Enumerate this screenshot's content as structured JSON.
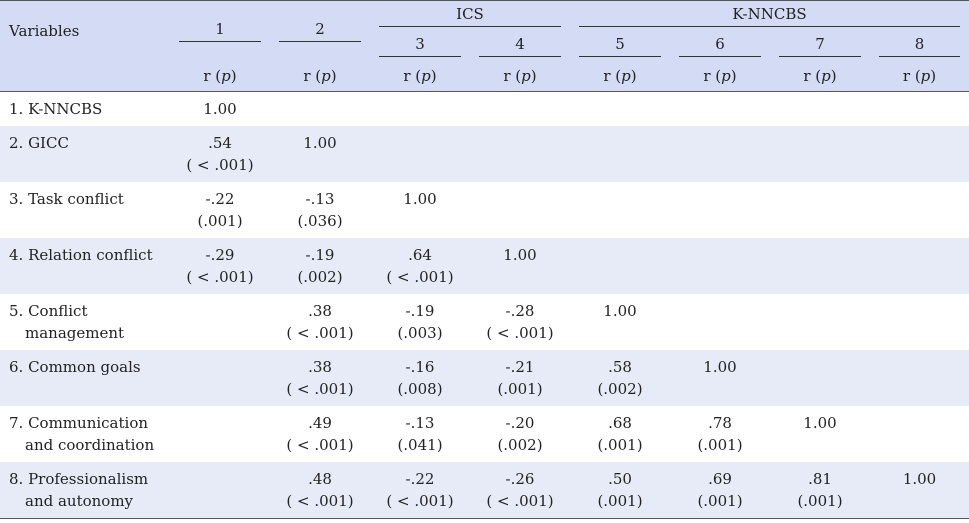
{
  "header": {
    "variables_label": "Variables",
    "groups": {
      "ics": "ICS",
      "knncbs": "K-NNCBS"
    },
    "col_numbers": [
      "1",
      "2",
      "3",
      "4",
      "5",
      "6",
      "7",
      "8"
    ],
    "r_prefix": "r (",
    "p_symbol": "p",
    "r_suffix": ")"
  },
  "rows": [
    {
      "label": "1. K-NNCBS",
      "label2": "",
      "cells": [
        [
          "1.00",
          ""
        ],
        [
          "",
          ""
        ],
        [
          "",
          ""
        ],
        [
          "",
          ""
        ],
        [
          "",
          ""
        ],
        [
          "",
          ""
        ],
        [
          "",
          ""
        ],
        [
          "",
          ""
        ]
      ]
    },
    {
      "label": "2. GICC",
      "label2": "",
      "cells": [
        [
          ".54",
          "( < .001)"
        ],
        [
          "1.00",
          ""
        ],
        [
          "",
          ""
        ],
        [
          "",
          ""
        ],
        [
          "",
          ""
        ],
        [
          "",
          ""
        ],
        [
          "",
          ""
        ],
        [
          "",
          ""
        ]
      ]
    },
    {
      "label": "3. Task conflict",
      "label2": "",
      "cells": [
        [
          "-.22",
          "(.001)"
        ],
        [
          "-.13",
          "(.036)"
        ],
        [
          "1.00",
          ""
        ],
        [
          "",
          ""
        ],
        [
          "",
          ""
        ],
        [
          "",
          ""
        ],
        [
          "",
          ""
        ],
        [
          "",
          ""
        ]
      ]
    },
    {
      "label": "4. Relation conflict",
      "label2": "",
      "cells": [
        [
          "-.29",
          "( < .001)"
        ],
        [
          "-.19",
          "(.002)"
        ],
        [
          ".64",
          "( < .001)"
        ],
        [
          "1.00",
          ""
        ],
        [
          "",
          ""
        ],
        [
          "",
          ""
        ],
        [
          "",
          ""
        ],
        [
          "",
          ""
        ]
      ]
    },
    {
      "label": "5. Conflict",
      "label2": "management",
      "cells": [
        [
          "",
          ""
        ],
        [
          ".38",
          "( < .001)"
        ],
        [
          "-.19",
          "(.003)"
        ],
        [
          "-.28",
          "( < .001)"
        ],
        [
          "1.00",
          ""
        ],
        [
          "",
          ""
        ],
        [
          "",
          ""
        ],
        [
          "",
          ""
        ]
      ]
    },
    {
      "label": "6. Common goals",
      "label2": "",
      "cells": [
        [
          "",
          ""
        ],
        [
          ".38",
          "( < .001)"
        ],
        [
          "-.16",
          "(.008)"
        ],
        [
          "-.21",
          "(.001)"
        ],
        [
          ".58",
          "(.002)"
        ],
        [
          "1.00",
          ""
        ],
        [
          "",
          ""
        ],
        [
          "",
          ""
        ]
      ]
    },
    {
      "label": "7. Communication",
      "label2": "and coordination",
      "cells": [
        [
          "",
          ""
        ],
        [
          ".49",
          "( < .001)"
        ],
        [
          "-.13",
          "(.041)"
        ],
        [
          "-.20",
          "(.002)"
        ],
        [
          ".68",
          "(.001)"
        ],
        [
          ".78",
          "(.001)"
        ],
        [
          "1.00",
          ""
        ],
        [
          "",
          ""
        ]
      ]
    },
    {
      "label": "8. Professionalism",
      "label2": "and autonomy",
      "cells": [
        [
          "",
          ""
        ],
        [
          ".48",
          "( < .001)"
        ],
        [
          "-.22",
          "( < .001)"
        ],
        [
          "-.26",
          "( < .001)"
        ],
        [
          ".50",
          "(.001)"
        ],
        [
          ".69",
          "(.001)"
        ],
        [
          ".81",
          "(.001)"
        ],
        [
          "1.00",
          ""
        ]
      ]
    }
  ]
}
